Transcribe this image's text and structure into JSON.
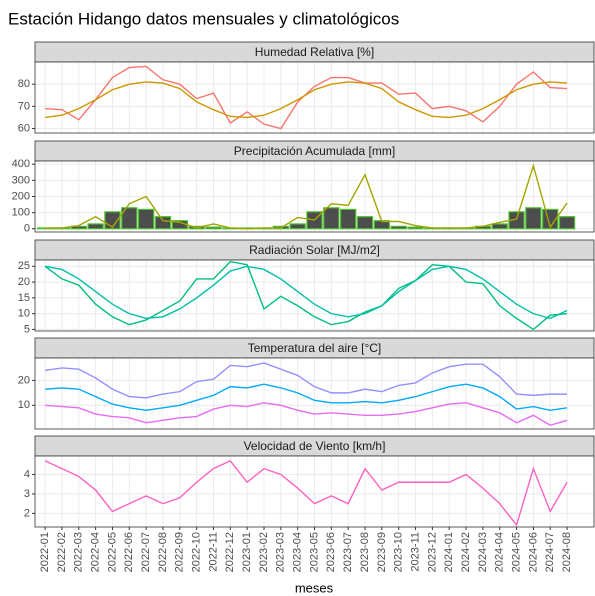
{
  "title": "Estación Hidango datos mensuales y climatológicos",
  "xlabel": "meses",
  "categories": [
    "2022-01",
    "2022-02",
    "2022-03",
    "2022-04",
    "2022-05",
    "2022-06",
    "2022-07",
    "2022-08",
    "2022-09",
    "2022-10",
    "2022-11",
    "2022-12",
    "2023-01",
    "2023-02",
    "2023-03",
    "2023-04",
    "2023-05",
    "2023-06",
    "2023-07",
    "2023-08",
    "2023-09",
    "2023-10",
    "2023-11",
    "2023-12",
    "2024-01",
    "2024-02",
    "2024-03",
    "2024-04",
    "2024-05",
    "2024-06",
    "2024-07",
    "2024-08"
  ],
  "chart_data": [
    {
      "type": "line",
      "title": "Humedad Relativa [%]",
      "ylim": [
        58,
        90
      ],
      "yticks": [
        60,
        70,
        80
      ],
      "grid": true,
      "series": [
        {
          "color": "#F8766D",
          "values": [
            69,
            68.5,
            64,
            73,
            83,
            87.5,
            88,
            82,
            80,
            73.5,
            76,
            62.5,
            67.5,
            62,
            60,
            72,
            79,
            83,
            83,
            80.5,
            80.5,
            75.5,
            76,
            69,
            70,
            68,
            63,
            70,
            80,
            85.5,
            78.5,
            78
          ]
        },
        {
          "color": "#CD9600",
          "values": [
            65,
            66,
            69,
            73,
            77.5,
            80,
            81,
            80.5,
            78,
            72,
            68.5,
            65.5,
            65,
            66,
            69,
            73,
            77.5,
            80,
            81,
            80.5,
            78,
            72,
            68.5,
            65.5,
            65,
            66,
            69,
            73,
            77.5,
            80,
            81,
            80.5
          ]
        }
      ]
    },
    {
      "type": "combo",
      "title": "Precipitación Acumulada [mm]",
      "ylim": [
        -20,
        420
      ],
      "yticks": [
        0,
        100,
        200,
        300,
        400
      ],
      "grid": true,
      "series": [
        {
          "type": "bar",
          "color": "#4D4D4D",
          "edgecolor": "#4CC02E",
          "values": [
            5,
            5,
            15,
            30,
            105,
            130,
            120,
            75,
            50,
            15,
            10,
            5,
            5,
            5,
            15,
            30,
            105,
            130,
            120,
            75,
            50,
            15,
            10,
            5,
            5,
            5,
            15,
            30,
            105,
            130,
            120,
            75
          ]
        },
        {
          "type": "line",
          "color": "#A3A500",
          "values": [
            5,
            5,
            20,
            75,
            10,
            155,
            200,
            50,
            40,
            5,
            30,
            5,
            0,
            5,
            5,
            70,
            55,
            155,
            145,
            335,
            45,
            45,
            20,
            5,
            5,
            5,
            15,
            40,
            60,
            390,
            10,
            160
          ]
        }
      ]
    },
    {
      "type": "line",
      "title": "Radiación Solar [MJ/m2]",
      "ylim": [
        4.5,
        27
      ],
      "yticks": [
        5,
        10,
        15,
        20,
        25
      ],
      "grid": true,
      "series": [
        {
          "color": "#00BF7D",
          "values": [
            25,
            21,
            19,
            13,
            9,
            6.5,
            8,
            11,
            14,
            21,
            21,
            26.5,
            25.5,
            11.5,
            15.5,
            12.5,
            9,
            6.5,
            7.5,
            10.5,
            12.5,
            18,
            20.5,
            25.5,
            25,
            20,
            19.5,
            12.5,
            8.5,
            5,
            9.5,
            10
          ]
        },
        {
          "color": "#00BFA8",
          "values": [
            25,
            24,
            21,
            17,
            13,
            10,
            8.5,
            9,
            11.5,
            15,
            19,
            23.5,
            25,
            24,
            21,
            17,
            13,
            10,
            9,
            10,
            12.5,
            17,
            20.5,
            24,
            25,
            24,
            21,
            17,
            13,
            10,
            8.5,
            11
          ]
        }
      ]
    },
    {
      "type": "line",
      "title": "Temperatura del aire [°C]",
      "ylim": [
        0.5,
        29
      ],
      "yticks": [
        10,
        20
      ],
      "grid": true,
      "series": [
        {
          "color": "#9590FF",
          "values": [
            24,
            25,
            24.5,
            21,
            16.5,
            13.5,
            13,
            14.5,
            15.5,
            19.5,
            20.5,
            26,
            25.5,
            27,
            24.5,
            22,
            17.5,
            15,
            15,
            16.5,
            15.5,
            18,
            19,
            23,
            25.5,
            26.5,
            26.5,
            21.5,
            14.5,
            14,
            14.5,
            14.5
          ]
        },
        {
          "color": "#00A9FF",
          "values": [
            16.5,
            17,
            16.5,
            13.5,
            10.5,
            9,
            8,
            9,
            10,
            12,
            14,
            17.5,
            17,
            18.5,
            17,
            15,
            12,
            11,
            11,
            11.5,
            11,
            12,
            13.5,
            15.5,
            17.5,
            18.5,
            17,
            13.5,
            8.5,
            9.5,
            8,
            9
          ]
        },
        {
          "color": "#E76BF3",
          "values": [
            10,
            9.5,
            9,
            6.5,
            5.5,
            5,
            3,
            4,
            5,
            5.5,
            8.5,
            10,
            9.5,
            11,
            10,
            8,
            6.5,
            7,
            6.5,
            6,
            6,
            6.5,
            7.5,
            9,
            10.5,
            11,
            9,
            7,
            3,
            6,
            2,
            4
          ]
        }
      ]
    },
    {
      "type": "line",
      "title": "Velocidad de Viento [km/h]",
      "ylim": [
        1.3,
        4.95
      ],
      "yticks": [
        2,
        3,
        4
      ],
      "grid": true,
      "series": [
        {
          "color": "#FF61C3",
          "values": [
            4.7,
            4.3,
            3.9,
            3.2,
            2.1,
            2.5,
            2.9,
            2.5,
            2.8,
            3.6,
            4.3,
            4.7,
            3.6,
            4.3,
            4.0,
            3.3,
            2.5,
            2.9,
            2.5,
            4.3,
            3.2,
            3.6,
            3.6,
            3.6,
            3.6,
            4.0,
            3.3,
            2.5,
            1.4,
            4.3,
            2.1,
            3.6
          ]
        }
      ]
    }
  ]
}
